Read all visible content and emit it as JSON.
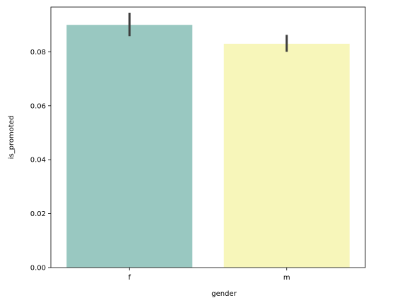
{
  "chart_data": {
    "type": "bar",
    "categories": [
      "f",
      "m"
    ],
    "values": [
      0.09,
      0.083
    ],
    "errors": [
      [
        0.0858,
        0.0945
      ],
      [
        0.08,
        0.0863
      ]
    ],
    "colors": [
      "#99c8c1",
      "#f7f6ba"
    ],
    "error_color": "#3d3d3d",
    "xlabel": "gender",
    "ylabel": "is_promoted",
    "ylim": [
      0,
      0.0966
    ],
    "yticks": [
      0.0,
      0.02,
      0.04,
      0.06,
      0.08
    ],
    "ytick_labels": [
      "0.00",
      "0.02",
      "0.04",
      "0.06",
      "0.08"
    ],
    "grid": false
  }
}
